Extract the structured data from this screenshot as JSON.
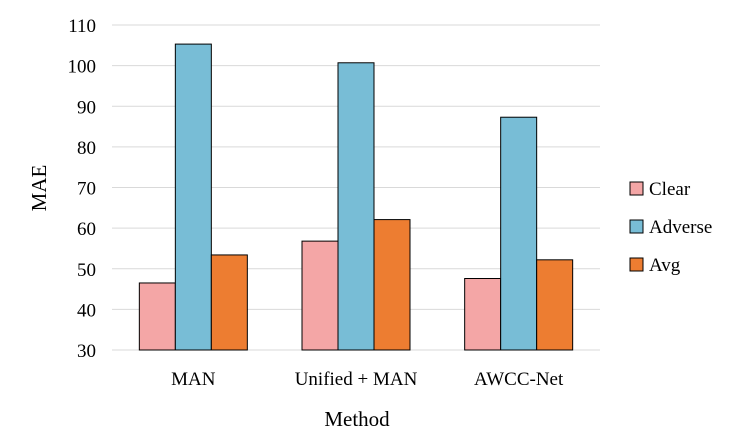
{
  "chart_data": {
    "type": "bar",
    "categories": [
      "MAN",
      "Unified + MAN",
      "AWCC-Net"
    ],
    "series": [
      {
        "name": "Clear",
        "values": [
          46.5,
          56.8,
          47.6
        ],
        "color": "#f4a6a6"
      },
      {
        "name": "Adverse",
        "values": [
          105.3,
          100.7,
          87.3
        ],
        "color": "#78bdd6"
      },
      {
        "name": "Avg",
        "values": [
          53.4,
          62.1,
          52.2
        ],
        "color": "#ed7d31"
      }
    ],
    "xlabel": "Method",
    "ylabel": "MAE",
    "ylim": [
      30,
      110
    ],
    "yticks": [
      30,
      40,
      50,
      60,
      70,
      80,
      90,
      100,
      110
    ],
    "grid": true,
    "legend_position": "right"
  }
}
